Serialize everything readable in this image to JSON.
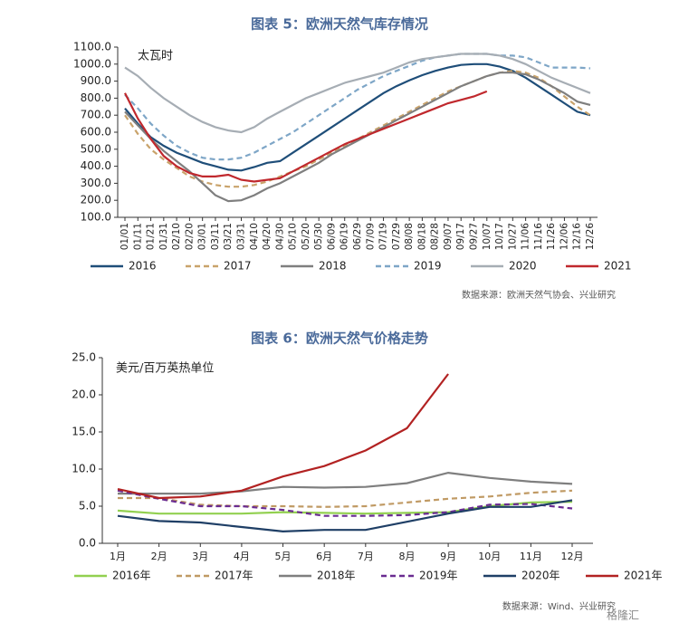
{
  "chart_data": [
    {
      "type": "line",
      "title": "图表 5：欧洲天然气库存情况",
      "unit_label": "太瓦时",
      "source": "数据来源：欧洲天然气协会、兴业研究",
      "categories": [
        "01/01",
        "01/11",
        "01/21",
        "01/31",
        "02/10",
        "02/20",
        "03/01",
        "03/11",
        "03/21",
        "03/31",
        "04/10",
        "04/20",
        "04/30",
        "05/10",
        "05/20",
        "05/30",
        "06/09",
        "06/19",
        "06/29",
        "07/09",
        "07/19",
        "07/29",
        "08/08",
        "08/18",
        "08/28",
        "09/07",
        "09/17",
        "09/27",
        "10/07",
        "10/17",
        "10/27",
        "11/06",
        "11/16",
        "11/26",
        "12/06",
        "12/16",
        "12/26"
      ],
      "ylim": [
        100,
        1100
      ],
      "yticks": [
        {
          "value": 100,
          "label": "100.0"
        },
        {
          "value": 200,
          "label": "200.0"
        },
        {
          "value": 300,
          "label": "300.0"
        },
        {
          "value": 400,
          "label": "400.0"
        },
        {
          "value": 500,
          "label": "500.0"
        },
        {
          "value": 600,
          "label": "600.0"
        },
        {
          "value": 700,
          "label": "700.0"
        },
        {
          "value": 800,
          "label": "800.0"
        },
        {
          "value": 900,
          "label": "900.0"
        },
        {
          "value": 1000,
          "label": "1000.0"
        },
        {
          "value": 1100,
          "label": "1100.0"
        }
      ],
      "series": [
        {
          "name": "2016",
          "color": "#1f4e79",
          "style": "solid",
          "values": [
            740,
            650,
            570,
            520,
            480,
            450,
            420,
            400,
            380,
            375,
            395,
            420,
            430,
            480,
            530,
            580,
            630,
            680,
            730,
            780,
            830,
            870,
            905,
            935,
            960,
            980,
            995,
            1000,
            1000,
            985,
            960,
            920,
            870,
            820,
            770,
            720,
            700
          ]
        },
        {
          "name": "2017",
          "color": "#c9a36b",
          "style": "dashed",
          "values": [
            700,
            590,
            500,
            440,
            390,
            340,
            310,
            290,
            280,
            280,
            290,
            310,
            340,
            370,
            400,
            440,
            480,
            520,
            560,
            600,
            640,
            680,
            720,
            760,
            800,
            840,
            870,
            900,
            930,
            950,
            960,
            950,
            920,
            870,
            810,
            750,
            700
          ]
        },
        {
          "name": "2018",
          "color": "#7f7f7f",
          "style": "solid",
          "values": [
            720,
            640,
            560,
            490,
            430,
            370,
            300,
            230,
            195,
            200,
            230,
            270,
            300,
            340,
            380,
            420,
            470,
            510,
            550,
            590,
            630,
            670,
            710,
            750,
            790,
            830,
            870,
            900,
            930,
            950,
            950,
            940,
            910,
            870,
            830,
            780,
            760
          ]
        },
        {
          "name": "2019",
          "color": "#7ea6c7",
          "style": "dashed",
          "values": [
            820,
            740,
            650,
            580,
            520,
            480,
            450,
            440,
            440,
            450,
            480,
            520,
            560,
            600,
            650,
            700,
            750,
            800,
            850,
            890,
            930,
            960,
            990,
            1020,
            1040,
            1050,
            1060,
            1060,
            1060,
            1050,
            1050,
            1040,
            1010,
            980,
            980,
            980,
            975
          ]
        },
        {
          "name": "2020",
          "color": "#a6adb4",
          "style": "solid",
          "values": [
            980,
            930,
            860,
            800,
            750,
            700,
            660,
            630,
            610,
            600,
            630,
            680,
            720,
            760,
            800,
            830,
            860,
            890,
            910,
            930,
            950,
            980,
            1010,
            1030,
            1040,
            1050,
            1060,
            1060,
            1060,
            1050,
            1030,
            1000,
            960,
            920,
            890,
            860,
            830
          ]
        },
        {
          "name": "2021",
          "color": "#c0282d",
          "style": "solid",
          "values": [
            830,
            680,
            560,
            460,
            400,
            360,
            340,
            340,
            350,
            320,
            310,
            320,
            330,
            370,
            410,
            450,
            490,
            530,
            560,
            590,
            620,
            650,
            680,
            710,
            740,
            770,
            790,
            810,
            840,
            null,
            null,
            null,
            null,
            null,
            null,
            null,
            null
          ]
        }
      ]
    },
    {
      "type": "line",
      "title": "图表 6：欧洲天然气价格走势",
      "unit_label": "美元/百万英热单位",
      "source": "数据来源：Wind、兴业研究",
      "categories": [
        "1月",
        "2月",
        "3月",
        "4月",
        "5月",
        "6月",
        "7月",
        "8月",
        "9月",
        "10月",
        "11月",
        "12月"
      ],
      "ylim": [
        0,
        25
      ],
      "yticks": [
        {
          "value": 0,
          "label": "0.0"
        },
        {
          "value": 5,
          "label": "5.0"
        },
        {
          "value": 10,
          "label": "10.0"
        },
        {
          "value": 15,
          "label": "15.0"
        },
        {
          "value": 20,
          "label": "20.0"
        },
        {
          "value": 25,
          "label": "25.0"
        }
      ],
      "series": [
        {
          "name": "2016年",
          "color": "#92d050",
          "style": "solid",
          "values": [
            4.4,
            4.0,
            4.0,
            4.0,
            4.2,
            4.1,
            4.0,
            4.1,
            4.2,
            5.0,
            5.5,
            5.6
          ]
        },
        {
          "name": "2017年",
          "color": "#c09a64",
          "style": "dashed",
          "values": [
            6.1,
            6.1,
            5.2,
            5.0,
            5.0,
            4.9,
            5.0,
            5.5,
            6.0,
            6.3,
            6.8,
            7.1
          ]
        },
        {
          "name": "2018年",
          "color": "#7f7f7f",
          "style": "solid",
          "values": [
            6.7,
            6.7,
            6.7,
            7.0,
            7.6,
            7.5,
            7.6,
            8.1,
            9.5,
            8.8,
            8.3,
            8.0
          ]
        },
        {
          "name": "2019年",
          "color": "#6a2c91",
          "style": "dashed",
          "values": [
            7.1,
            6.0,
            5.0,
            5.0,
            4.5,
            3.7,
            3.7,
            3.8,
            4.2,
            5.2,
            5.3,
            4.7
          ]
        },
        {
          "name": "2020年",
          "color": "#1f3f66",
          "style": "solid",
          "values": [
            3.7,
            3.0,
            2.8,
            2.2,
            1.6,
            1.8,
            1.8,
            2.9,
            4.0,
            4.9,
            4.9,
            5.8
          ]
        },
        {
          "name": "2021年",
          "color": "#b22222",
          "style": "solid",
          "values": [
            7.3,
            6.1,
            6.3,
            7.1,
            9.0,
            10.4,
            12.5,
            15.5,
            22.8,
            null,
            null,
            null
          ]
        }
      ]
    }
  ],
  "watermark": "格隆汇"
}
